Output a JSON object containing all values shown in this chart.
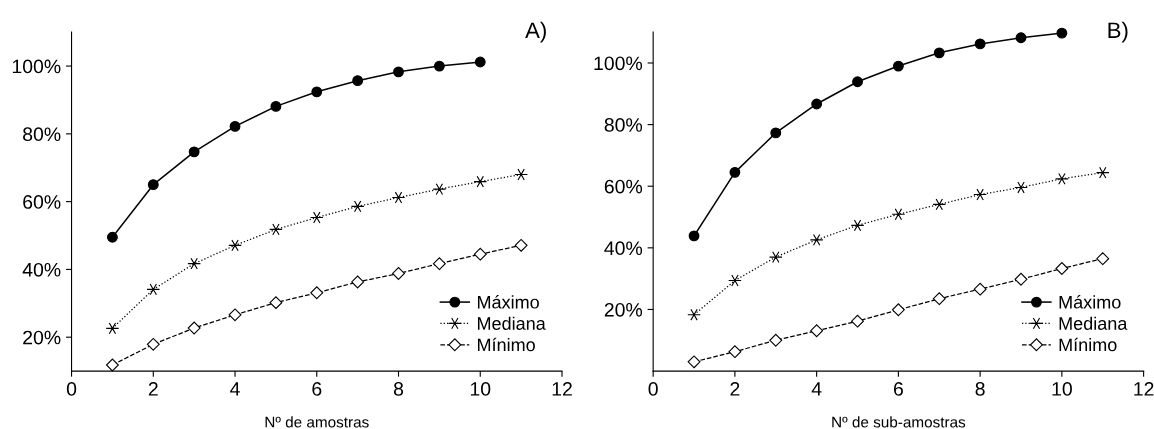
{
  "chart_data": [
    {
      "type": "line",
      "xlabel": "Nº de amostras",
      "annotations": [
        "A)"
      ],
      "x": [
        1,
        2,
        3,
        4,
        5,
        6,
        7,
        8,
        9,
        10,
        11
      ],
      "xlim": [
        0,
        12
      ],
      "xticks": [
        0,
        2,
        4,
        6,
        8,
        10,
        12
      ],
      "ylim": [
        10,
        110
      ],
      "yticks": [
        {
          "value": 20,
          "label": "20%"
        },
        {
          "value": 40,
          "label": "40%"
        },
        {
          "value": 60,
          "label": "60%"
        },
        {
          "value": 80,
          "label": "80%"
        },
        {
          "value": 100,
          "label": "100%"
        }
      ],
      "legend": "bottom right",
      "grid": false,
      "series": [
        {
          "name": "Máximo",
          "color": "#000000",
          "marker": "circle",
          "line_style": "solid",
          "values": [
            49.5,
            65,
            74.7,
            82.2,
            88.1,
            92.4,
            95.7,
            98.3,
            100,
            101.2,
            null
          ]
        },
        {
          "name": "Mediana",
          "color": "#000000",
          "marker": "cross",
          "line_style": "dotted",
          "values": [
            22.6,
            34.1,
            41.7,
            47.1,
            51.8,
            55.3,
            58.6,
            61.2,
            63.7,
            65.9,
            68.0
          ]
        },
        {
          "name": "Mínimo",
          "color": "#000000",
          "marker": "diamond",
          "line_style": "dashed",
          "values": [
            11.8,
            17.9,
            22.7,
            26.6,
            30.2,
            33.1,
            36.3,
            38.8,
            41.7,
            44.5,
            47.1
          ]
        }
      ]
    },
    {
      "type": "line",
      "xlabel": "Nº de sub-amostras",
      "annotations": [
        "B)"
      ],
      "x": [
        1,
        2,
        3,
        4,
        5,
        6,
        7,
        8,
        9,
        10,
        11
      ],
      "xlim": [
        0,
        12
      ],
      "xticks": [
        0,
        2,
        4,
        6,
        8,
        10,
        12
      ],
      "ylim": [
        0,
        110
      ],
      "yticks": [
        {
          "value": 20,
          "label": "20%"
        },
        {
          "value": 40,
          "label": "40%"
        },
        {
          "value": 60,
          "label": "60%"
        },
        {
          "value": 80,
          "label": "80%"
        },
        {
          "value": 100,
          "label": "100%"
        }
      ],
      "legend": "bottom right",
      "grid": false,
      "series": [
        {
          "name": "Máximo",
          "color": "#000000",
          "marker": "circle",
          "line_style": "solid",
          "values": [
            43.9,
            64.5,
            77.3,
            86.7,
            93.9,
            99.0,
            103.3,
            106.2,
            108.2,
            109.7,
            null
          ]
        },
        {
          "name": "Mediana",
          "color": "#000000",
          "marker": "cross",
          "line_style": "dotted",
          "values": [
            18.3,
            29.4,
            37.0,
            42.6,
            47.3,
            50.9,
            54.1,
            57.3,
            59.6,
            62.4,
            64.4
          ]
        },
        {
          "name": "Mínimo",
          "color": "#000000",
          "marker": "diamond",
          "line_style": "dashed",
          "values": [
            3.0,
            6.3,
            10.0,
            13.1,
            16.2,
            19.9,
            23.5,
            26.6,
            29.8,
            33.3,
            36.5
          ]
        }
      ]
    }
  ]
}
